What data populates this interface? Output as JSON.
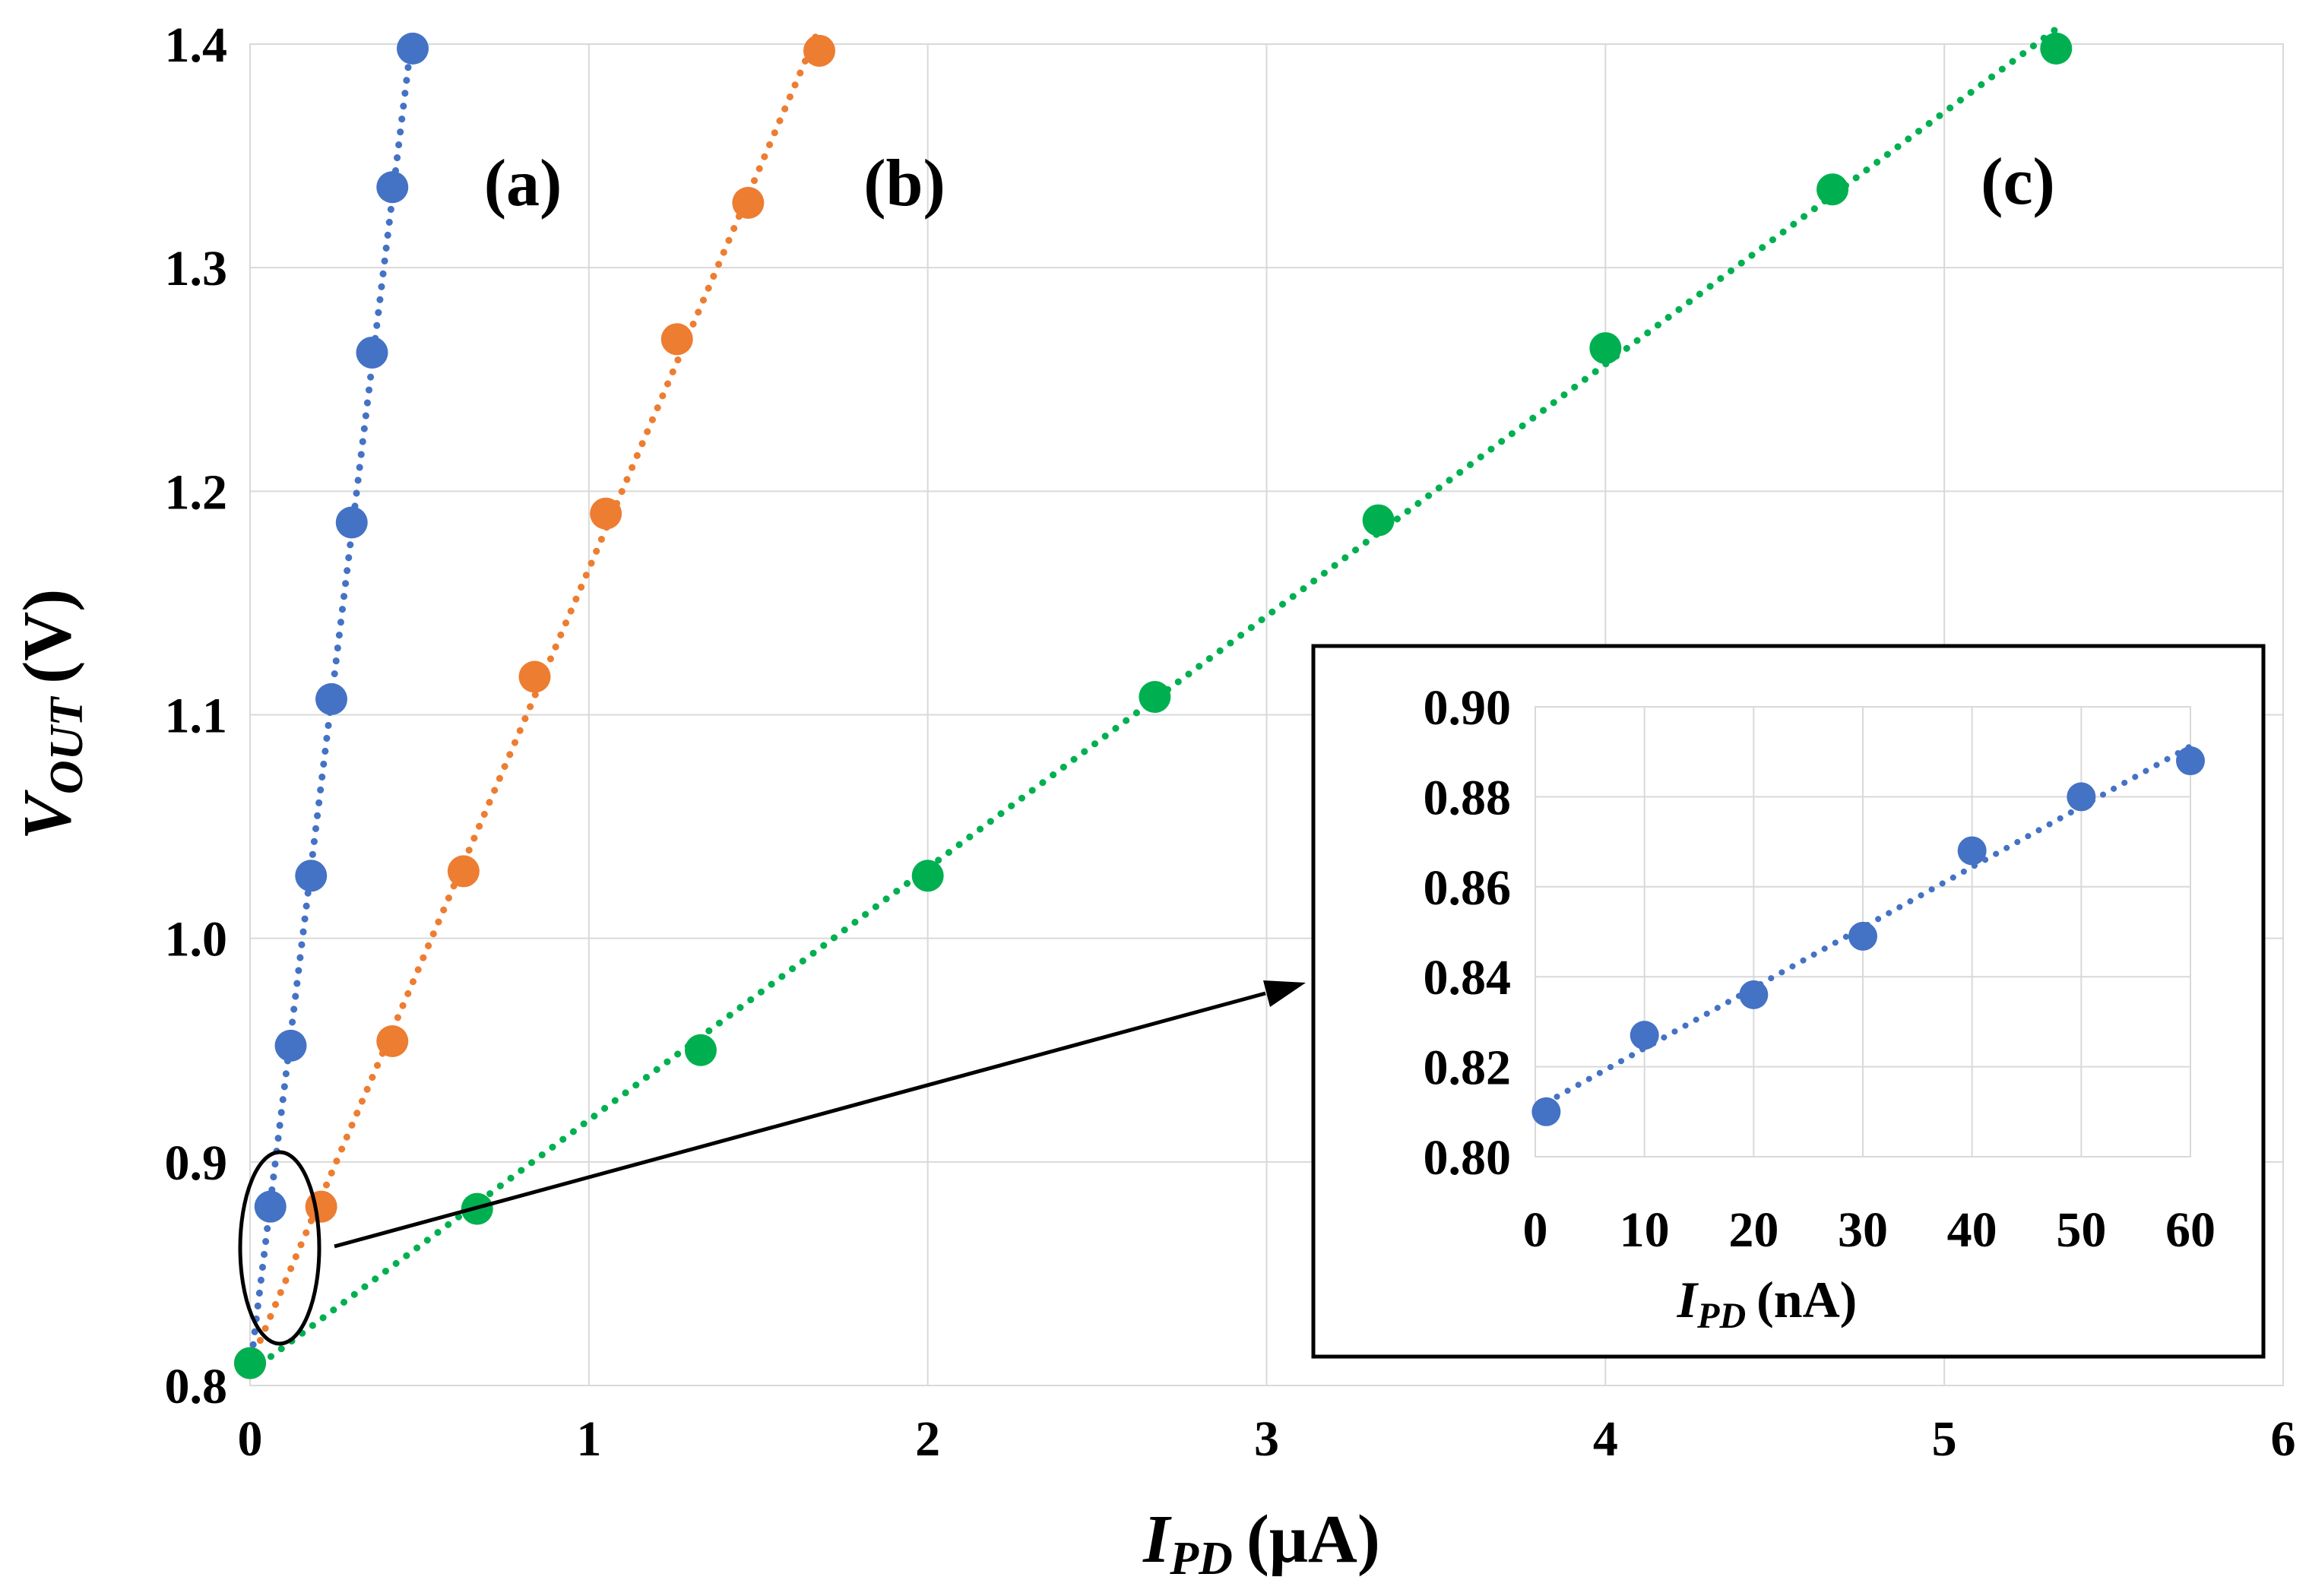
{
  "chart_data": [
    {
      "type": "scatter",
      "title": "",
      "xlabel": {
        "main": "I",
        "sub": "PD",
        "unit": "(μA)"
      },
      "ylabel": {
        "main": "V",
        "sub": "OUT",
        "unit": "(V)"
      },
      "xlim": [
        0,
        6
      ],
      "ylim": [
        0.8,
        1.4
      ],
      "x_ticks": [
        "0",
        "1",
        "2",
        "3",
        "4",
        "5",
        "6"
      ],
      "y_ticks": [
        "0.8",
        "0.9",
        "1.0",
        "1.1",
        "1.2",
        "1.3",
        "1.4"
      ],
      "grid": true,
      "line_style": "dotted trendline",
      "series": [
        {
          "name": "(a)",
          "color": "#4472c4",
          "x": [
            0.0,
            0.06,
            0.12,
            0.18,
            0.24,
            0.3,
            0.36,
            0.42,
            0.48
          ],
          "y": [
            0.81,
            0.88,
            0.952,
            1.028,
            1.107,
            1.186,
            1.262,
            1.336,
            1.398
          ]
        },
        {
          "name": "(b)",
          "color": "#ed7d31",
          "x": [
            0.0,
            0.21,
            0.42,
            0.63,
            0.84,
            1.05,
            1.26,
            1.47,
            1.68
          ],
          "y": [
            0.81,
            0.88,
            0.954,
            1.03,
            1.117,
            1.19,
            1.268,
            1.329,
            1.397
          ]
        },
        {
          "name": "(c)",
          "color": "#00b050",
          "x": [
            0.0,
            0.67,
            1.33,
            2.0,
            2.67,
            3.33,
            4.0,
            4.67,
            5.33
          ],
          "y": [
            0.81,
            0.879,
            0.95,
            1.028,
            1.108,
            1.187,
            1.264,
            1.335,
            1.398
          ]
        }
      ]
    },
    {
      "type": "scatter",
      "title": "",
      "xlabel": {
        "main": "I",
        "sub": "PD",
        "unit": "(nA)"
      },
      "ylabel": "",
      "xlim": [
        0,
        60
      ],
      "ylim": [
        0.8,
        0.9
      ],
      "x_ticks": [
        "0",
        "10",
        "20",
        "30",
        "40",
        "50",
        "60"
      ],
      "y_ticks": [
        "0.80",
        "0.82",
        "0.84",
        "0.86",
        "0.88",
        "0.90"
      ],
      "grid": true,
      "line_style": "dotted trendline",
      "series": [
        {
          "name": "inset",
          "color": "#4472c4",
          "x": [
            1,
            10,
            20,
            30,
            40,
            50,
            60
          ],
          "y": [
            0.81,
            0.827,
            0.836,
            0.849,
            0.868,
            0.88,
            0.888
          ]
        }
      ]
    }
  ]
}
